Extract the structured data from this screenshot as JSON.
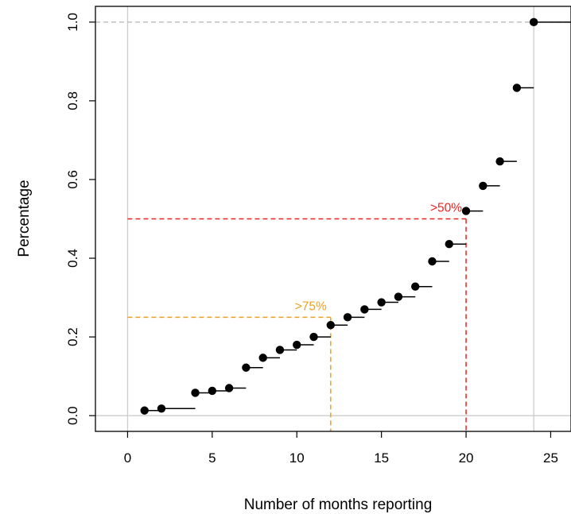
{
  "chart_data": {
    "type": "step",
    "title": "",
    "xlabel": "Number of months reporting",
    "ylabel": "Percentage",
    "xlim": [
      -1.9,
      26.2
    ],
    "ylim": [
      -0.04,
      1.04
    ],
    "xticks": [
      0,
      5,
      10,
      15,
      20,
      25
    ],
    "yticks": [
      0.0,
      0.2,
      0.4,
      0.6,
      0.8,
      1.0
    ],
    "xtick_labels": [
      "0",
      "5",
      "10",
      "15",
      "20",
      "25"
    ],
    "ytick_labels": [
      "0.0",
      "0.2",
      "0.4",
      "0.6",
      "0.8",
      "1.0"
    ],
    "points": [
      {
        "x": 1,
        "y": 0.013
      },
      {
        "x": 2,
        "y": 0.018
      },
      {
        "x": 4,
        "y": 0.058
      },
      {
        "x": 5,
        "y": 0.063
      },
      {
        "x": 6,
        "y": 0.07
      },
      {
        "x": 7,
        "y": 0.122
      },
      {
        "x": 8,
        "y": 0.147
      },
      {
        "x": 9,
        "y": 0.167
      },
      {
        "x": 10,
        "y": 0.18
      },
      {
        "x": 11,
        "y": 0.2
      },
      {
        "x": 12,
        "y": 0.23
      },
      {
        "x": 13,
        "y": 0.25
      },
      {
        "x": 14,
        "y": 0.27
      },
      {
        "x": 15,
        "y": 0.288
      },
      {
        "x": 16,
        "y": 0.302
      },
      {
        "x": 17,
        "y": 0.328
      },
      {
        "x": 18,
        "y": 0.392
      },
      {
        "x": 19,
        "y": 0.436
      },
      {
        "x": 20,
        "y": 0.52
      },
      {
        "x": 21,
        "y": 0.584
      },
      {
        "x": 22,
        "y": 0.646
      },
      {
        "x": 23,
        "y": 0.833
      },
      {
        "x": 24,
        "y": 1.0
      }
    ],
    "reference_lines": {
      "vertical_grey": [
        0,
        24
      ],
      "horizontal_grey": [
        0,
        1.0
      ]
    },
    "annotations": [
      {
        "label": ">75%",
        "x": 12,
        "y": 0.25,
        "color": "#f0a020"
      },
      {
        "label": ">50%",
        "x": 20,
        "y": 0.5,
        "color": "#ee2222"
      }
    ],
    "colors": {
      "points": "#000000",
      "grid": "#cccccc",
      "dashed_top": "#bbbbbb"
    }
  }
}
